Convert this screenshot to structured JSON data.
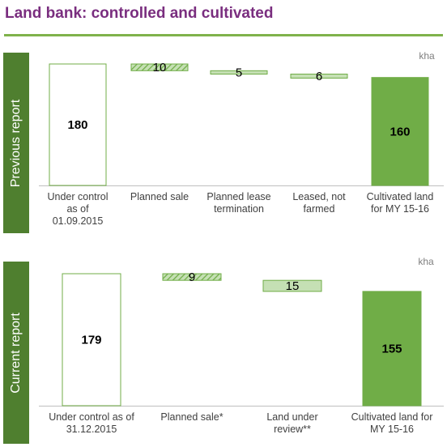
{
  "title": "Land bank: controlled and cultivated",
  "colors": {
    "title": "#7a2e7f",
    "rule": "#7fb24b",
    "side_label_bg": "#4f7f2f",
    "cultivated": "#70ad47",
    "light_bar": "#c5e0b4",
    "outline": "#70ad47",
    "hatch": "#70ad47"
  },
  "chart_data": [
    {
      "type": "bar",
      "side_label": "Previous report",
      "unit": "kha",
      "categories": [
        "Under control as of 01.09.2015",
        "Planned sale",
        "Planned lease termination",
        "Leased, not farmed",
        "Cultivated land for MY 15-16"
      ],
      "category_lines": [
        [
          "Under control",
          "as of",
          "01.09.2015"
        ],
        [
          "Planned sale"
        ],
        [
          "Planned lease",
          "termination"
        ],
        [
          "Leased, not",
          "farmed"
        ],
        [
          "Cultivated land",
          "for MY 15-16"
        ]
      ],
      "values": [
        180,
        10,
        5,
        6,
        160
      ],
      "labels": [
        "180",
        "10",
        "5",
        "6",
        "160"
      ],
      "kinds": [
        "total-outline",
        "hatched",
        "light",
        "light",
        "total-filled"
      ]
    },
    {
      "type": "bar",
      "side_label": "Current report",
      "unit": "kha",
      "categories": [
        "Under control as of 31.12.2015",
        "Planned sale*",
        "Land under review**",
        "Cultivated land for MY 15-16"
      ],
      "category_lines": [
        [
          "Under control as of",
          "31.12.2015"
        ],
        [
          "Planned sale*"
        ],
        [
          "Land under",
          "review**"
        ],
        [
          "Cultivated land for",
          "MY 15-16"
        ]
      ],
      "values": [
        179,
        9,
        15,
        155
      ],
      "labels": [
        "179",
        "9",
        "15",
        "155"
      ],
      "kinds": [
        "total-outline",
        "hatched",
        "light",
        "total-filled"
      ]
    }
  ]
}
